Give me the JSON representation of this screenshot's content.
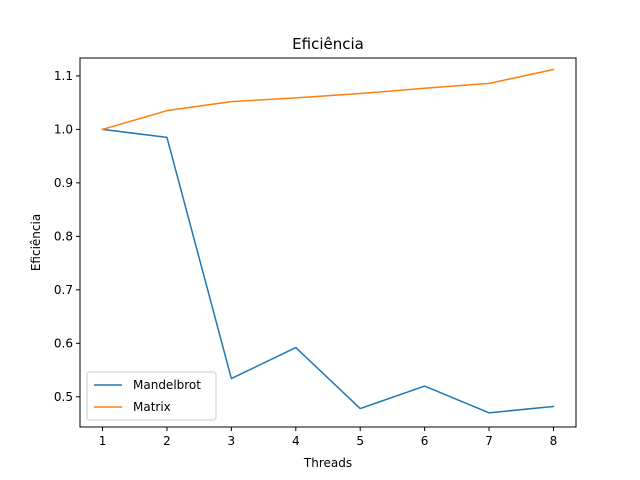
{
  "chart_data": {
    "type": "line",
    "title": "Eficiência",
    "xlabel": "Threads",
    "ylabel": "Eficiência",
    "x": [
      1,
      2,
      3,
      4,
      5,
      6,
      7,
      8
    ],
    "xlim": [
      0.65,
      8.35
    ],
    "ylim": [
      0.4435,
      1.1335
    ],
    "x_ticks": [
      1,
      2,
      3,
      4,
      5,
      6,
      7,
      8
    ],
    "y_ticks": [
      0.5,
      0.6,
      0.7,
      0.8,
      0.9,
      1.0,
      1.1
    ],
    "y_tick_labels": [
      "0.5",
      "0.6",
      "0.7",
      "0.8",
      "0.9",
      "1.0",
      "1.1"
    ],
    "grid": false,
    "legend_position": "lower-left",
    "series": [
      {
        "name": "Mandelbrot",
        "color": "#1f77b4",
        "values": [
          1.0,
          0.985,
          0.534,
          0.592,
          0.478,
          0.52,
          0.47,
          0.482
        ]
      },
      {
        "name": "Matrix",
        "color": "#ff7f0e",
        "values": [
          1.0,
          1.035,
          1.052,
          1.059,
          1.067,
          1.077,
          1.086,
          1.112
        ]
      }
    ]
  }
}
